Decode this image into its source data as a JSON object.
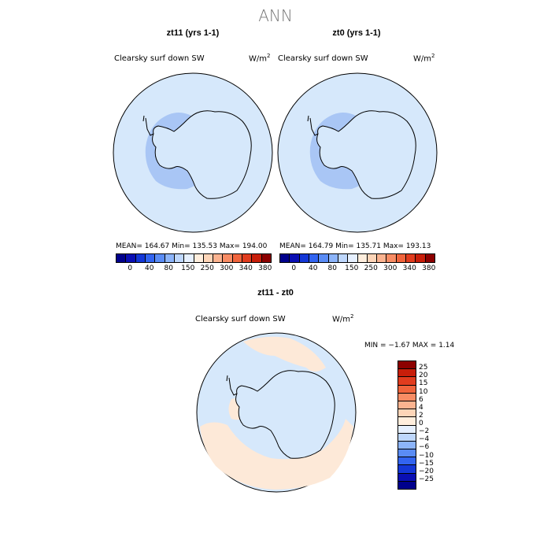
{
  "title": "ANN",
  "panels": [
    {
      "title": "zt11 (yrs 1-1)",
      "variable": "Clearsky surf down SW",
      "units": "W/m",
      "units_exp": "2",
      "stats": "MEAN= 164.67   Min= 135.53   Max= 194.00"
    },
    {
      "title": "zt0 (yrs 1-1)",
      "variable": "Clearsky surf down SW",
      "units": "W/m",
      "units_exp": "2",
      "stats": "MEAN= 164.79   Min= 135.71   Max= 193.13"
    }
  ],
  "abs_colorbar": {
    "colors": [
      "#00008c",
      "#0a0fb4",
      "#1437d7",
      "#3264f0",
      "#5a8cf5",
      "#8cb4fa",
      "#bed7fc",
      "#e6f0ff",
      "#ffeedd",
      "#fdd5b8",
      "#fbb390",
      "#f88c64",
      "#f0643c",
      "#e13c1e",
      "#c81e0a",
      "#8c0000"
    ],
    "ticks": [
      "0",
      "40",
      "80",
      "150",
      "250",
      "300",
      "340",
      "380"
    ]
  },
  "diff": {
    "title": "zt11 - zt0",
    "variable": "Clearsky surf down SW",
    "units": "W/m",
    "units_exp": "2",
    "stats": "MIN =  −1.67 MAX =   1.14",
    "colorbar_colors_top_to_bottom": [
      "#8c0000",
      "#c81e0a",
      "#e13c1e",
      "#f0643c",
      "#f88c64",
      "#fbb390",
      "#fdd5b8",
      "#ffeedd",
      "#e6f0ff",
      "#bed7fc",
      "#8cb4fa",
      "#5a8cf5",
      "#3264f0",
      "#1437d7",
      "#0a0fb4",
      "#00008c"
    ],
    "colorbar_labels": [
      "25",
      "20",
      "15",
      "10",
      "6",
      "4",
      "2",
      "0",
      "−2",
      "−4",
      "−6",
      "−10",
      "−15",
      "−20",
      "−25"
    ]
  },
  "colors": {
    "ocean_light": "#d6e8fb",
    "antarctic_low": "#a9c6f5",
    "diff_positive": "#fde9d8"
  }
}
